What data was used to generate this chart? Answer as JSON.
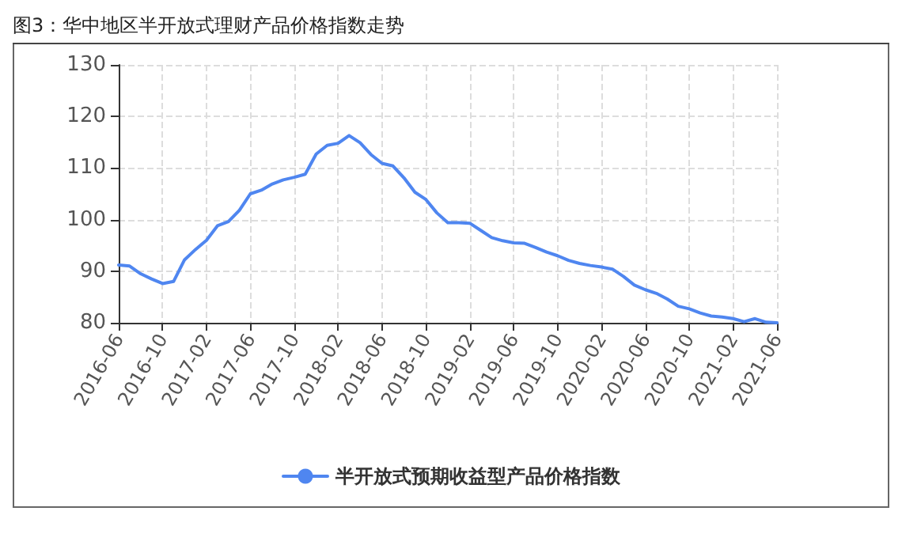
{
  "chart_data": {
    "type": "line",
    "title": "图3：华中地区半开放式理财产品价格指数走势",
    "categories": [
      "2016-06",
      null,
      null,
      null,
      "2016-10",
      null,
      null,
      null,
      "2017-02",
      null,
      null,
      null,
      "2017-06",
      null,
      null,
      null,
      "2017-10",
      null,
      null,
      null,
      "2018-02",
      null,
      null,
      null,
      "2018-06",
      null,
      null,
      null,
      "2018-10",
      null,
      null,
      null,
      "2019-02",
      null,
      null,
      null,
      "2019-06",
      null,
      null,
      null,
      "2019-10",
      null,
      null,
      null,
      "2020-02",
      null,
      null,
      null,
      "2020-06",
      null,
      null,
      null,
      "2020-10",
      null,
      null,
      null,
      "2021-02",
      null,
      null,
      null,
      "2021-06"
    ],
    "series": [
      {
        "name": "半开放式预期收益型产品价格指数",
        "color": "#4f86f0",
        "values": [
          91.2,
          91.0,
          89.5,
          88.5,
          87.6,
          88.0,
          92.2,
          94.2,
          96.0,
          98.8,
          99.6,
          101.8,
          105.0,
          105.7,
          106.9,
          107.7,
          108.2,
          108.8,
          112.7,
          114.4,
          114.8,
          116.3,
          114.9,
          112.6,
          110.9,
          110.4,
          108.1,
          105.3,
          103.9,
          101.3,
          99.4,
          99.4,
          99.3,
          97.9,
          96.5,
          95.9,
          95.5,
          95.4,
          94.6,
          93.7,
          93.0,
          92.1,
          91.5,
          91.1,
          90.8,
          90.4,
          89.0,
          87.3,
          86.4,
          85.7,
          84.6,
          83.2,
          82.7,
          81.9,
          81.3,
          81.1,
          80.8,
          80.2,
          80.8,
          80.1,
          80.0
        ]
      }
    ],
    "ylim": [
      80,
      130
    ],
    "yticks": [
      80,
      90,
      100,
      110,
      120,
      130
    ],
    "grid": true,
    "legend": "bottom",
    "marker": "none",
    "line_style": "solid"
  }
}
